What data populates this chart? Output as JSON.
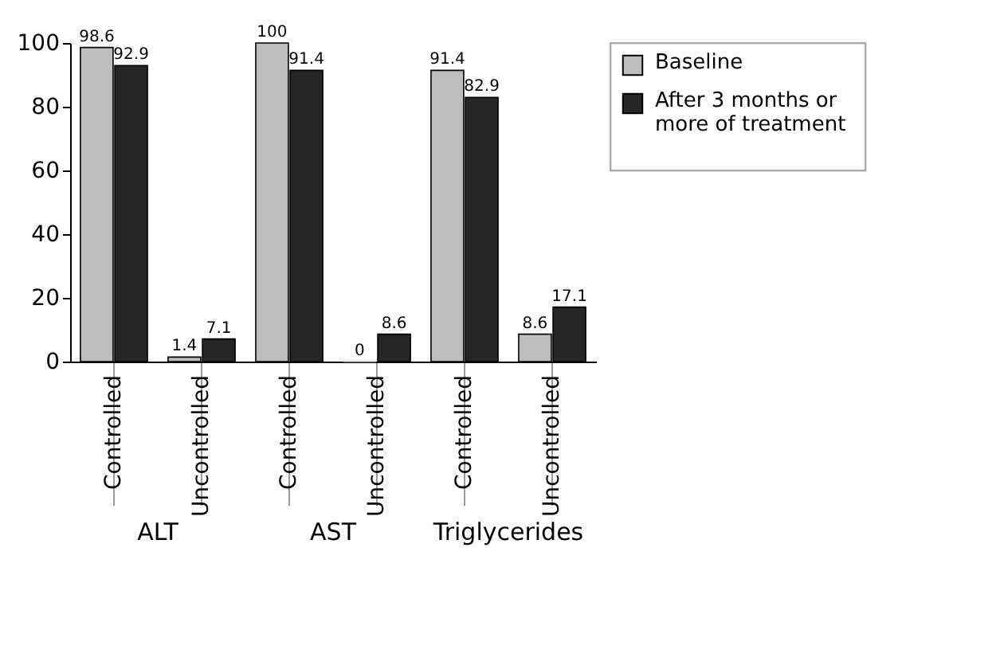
{
  "chart_data": {
    "type": "bar",
    "categories": [
      "Controlled",
      "Uncontrolled",
      "Controlled",
      "Uncontrolled",
      "Controlled",
      "Uncontrolled"
    ],
    "series": [
      {
        "name": "Baseline",
        "color": "#bdbdbd",
        "values": [
          98.6,
          1.4,
          100,
          0,
          91.4,
          8.6
        ]
      },
      {
        "name": "After 3 months or more of treatment",
        "color": "#262626",
        "values": [
          92.9,
          7.1,
          91.4,
          8.6,
          82.9,
          17.1
        ]
      }
    ],
    "annotations": [
      "ALT",
      "AST",
      "Triglycerides"
    ],
    "ylim": [
      0,
      100
    ],
    "yticks": [
      0,
      20,
      40,
      60,
      80,
      100
    ],
    "grid": false,
    "legend": "right",
    "data_labels": true
  }
}
